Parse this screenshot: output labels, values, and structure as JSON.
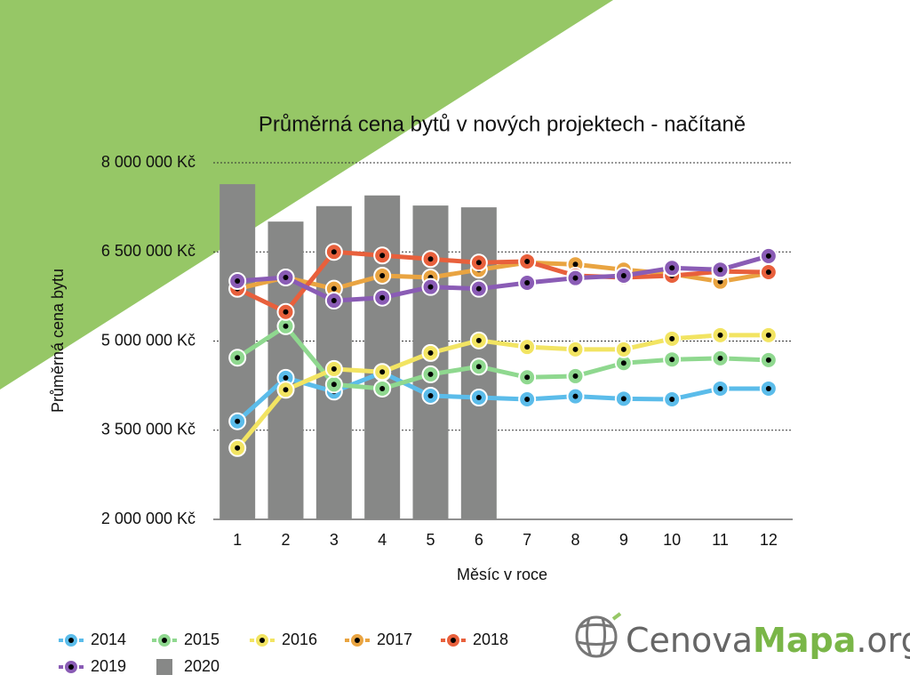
{
  "chart_data": {
    "type": "line",
    "title": "Průměrná cena bytů v nových projektech - načítaně",
    "x_label": "Měsíc v roce",
    "y_label": "Průměrná cena bytu",
    "categories": [
      "1",
      "2",
      "3",
      "4",
      "5",
      "6",
      "7",
      "8",
      "9",
      "10",
      "11",
      "12"
    ],
    "ylim": [
      2000000,
      8000000
    ],
    "yticks": [
      {
        "value": 2000000,
        "label": "2 000 000 Kč"
      },
      {
        "value": 3500000,
        "label": "3 500 000 Kč"
      },
      {
        "value": 5000000,
        "label": "5 000 000 Kč"
      },
      {
        "value": 6500000,
        "label": "6 500 000 Kč"
      },
      {
        "value": 8000000,
        "label": "8 000 000 Kč"
      }
    ],
    "grid": true,
    "legend": "bottom-left",
    "series": [
      {
        "name": "2020",
        "type": "bar",
        "color": "#878887",
        "values": [
          7640000,
          7010000,
          7270000,
          7450000,
          7280000,
          7250000,
          null,
          null,
          null,
          null,
          null,
          null
        ]
      },
      {
        "name": "2014",
        "color": "#5bbcea",
        "values": [
          3650000,
          4380000,
          4150000,
          4470000,
          4080000,
          4050000,
          4020000,
          4070000,
          4030000,
          4020000,
          4200000,
          4200000
        ]
      },
      {
        "name": "2015",
        "color": "#8fd88f",
        "values": [
          4720000,
          5250000,
          4270000,
          4200000,
          4440000,
          4570000,
          4390000,
          4410000,
          4630000,
          4690000,
          4710000,
          4680000
        ]
      },
      {
        "name": "2016",
        "color": "#f2e462",
        "values": [
          3200000,
          4180000,
          4530000,
          4480000,
          4800000,
          5010000,
          4900000,
          4860000,
          4860000,
          5040000,
          5100000,
          5100000
        ]
      },
      {
        "name": "2017",
        "color": "#e9a441",
        "values": [
          5880000,
          6070000,
          5880000,
          6100000,
          6070000,
          6200000,
          6320000,
          6290000,
          6200000,
          6130000,
          6000000,
          6140000
        ]
      },
      {
        "name": "2018",
        "color": "#e8603c",
        "values": [
          5880000,
          5490000,
          6500000,
          6440000,
          6380000,
          6320000,
          6340000,
          6100000,
          6070000,
          6100000,
          6170000,
          6160000
        ]
      },
      {
        "name": "2019",
        "color": "#8a5cb5",
        "values": [
          6010000,
          6070000,
          5680000,
          5730000,
          5910000,
          5880000,
          5980000,
          6060000,
          6100000,
          6230000,
          6200000,
          6430000
        ]
      }
    ]
  },
  "logo": {
    "part1": "Cenova",
    "part2": "Mapa",
    "part3": ".org"
  }
}
